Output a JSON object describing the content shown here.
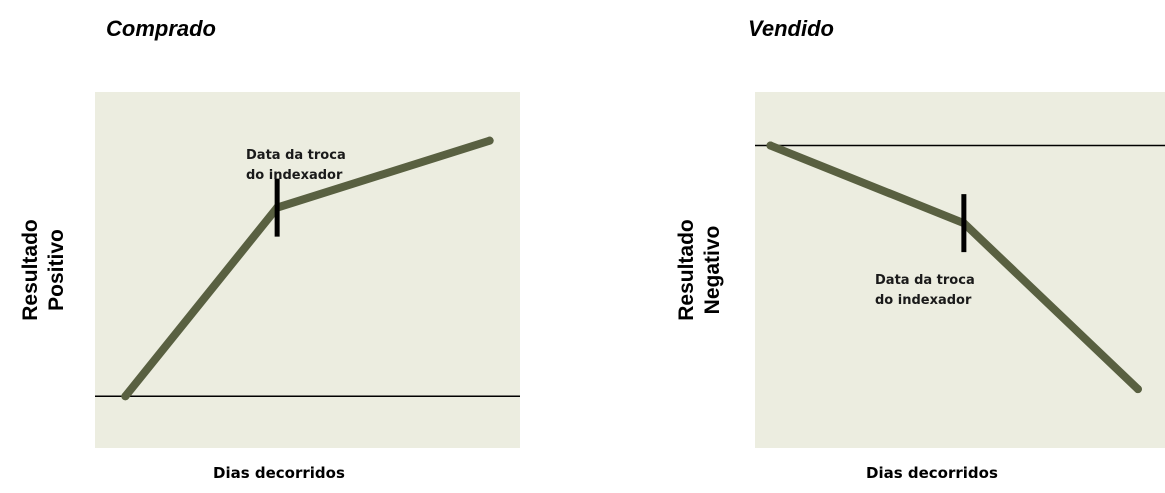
{
  "chart_data": [
    {
      "type": "line",
      "title": "Comprado",
      "ylabel": [
        "Resultado",
        "Positivo"
      ],
      "xlabel": "Dias decorridos",
      "annotation": [
        "Data da troca",
        "do indexador"
      ],
      "x": [
        0,
        5,
        12
      ],
      "series": [
        {
          "values": [
            0,
            6.2,
            8.4
          ]
        }
      ],
      "marker_x": 5,
      "baseline_y": 0,
      "xlim": [
        -1,
        13
      ],
      "ylim": [
        -1.7,
        10
      ],
      "colors": {
        "line": "#596041",
        "marker": "#000000",
        "baseline": "#000000",
        "background": "#ecede0"
      }
    },
    {
      "type": "line",
      "title": "Vendido",
      "ylabel": [
        "Resultado",
        "Negativo"
      ],
      "xlabel": "Dias decorridos",
      "annotation": [
        "Data da troca",
        "do indexador"
      ],
      "x": [
        0,
        5,
        9.5
      ],
      "series": [
        {
          "values": [
            0,
            -2.9,
            -9.1
          ]
        }
      ],
      "marker_x": 5,
      "baseline_y": 0,
      "xlim": [
        -0.4,
        10.2
      ],
      "ylim": [
        -11.3,
        2
      ],
      "colors": {
        "line": "#596041",
        "marker": "#000000",
        "baseline": "#000000",
        "background": "#ecede0"
      }
    }
  ]
}
